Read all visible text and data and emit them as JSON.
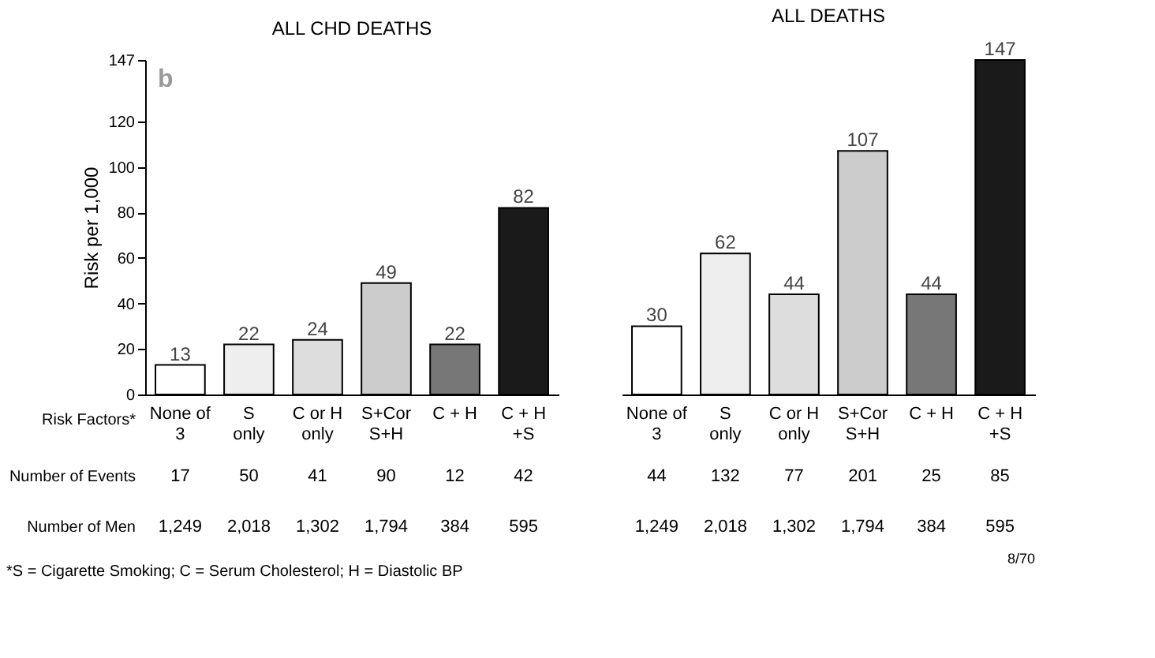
{
  "chart_data": [
    {
      "type": "bar",
      "title": "ALL CHD DEATHS",
      "ylabel": "Risk per 1,000",
      "categories": [
        "None of 3",
        "S only",
        "C or H only",
        "S+Cor S+H",
        "C + H",
        "C + H +S"
      ],
      "values": [
        13,
        22,
        24,
        49,
        22,
        82
      ],
      "colors": [
        "#ffffff",
        "#eeeeee",
        "#dddddd",
        "#cccccc",
        "#777777",
        "#1a1a1a"
      ],
      "ylim": [
        0,
        147
      ],
      "yticks": [
        0,
        20,
        40,
        60,
        80,
        100,
        120,
        147
      ],
      "data_labels": true,
      "grid": false,
      "annotations": [
        "17",
        "50",
        "41",
        "90",
        "12",
        "42",
        "1,249",
        "2,018",
        "1,302",
        "1,794",
        "384",
        "595",
        "b",
        "Risk Factors*",
        "Number of Events",
        "Number of Men",
        "*S = Cigarette Smoking; C = Serum Cholesterol; H = Diastolic BP"
      ]
    },
    {
      "type": "bar",
      "title": "ALL DEATHS",
      "categories": [
        "None of 3",
        "S only",
        "C or H only",
        "S+Cor S+H",
        "C + H",
        "C + H +S"
      ],
      "values": [
        30,
        62,
        44,
        107,
        44,
        147
      ],
      "colors": [
        "#ffffff",
        "#eeeeee",
        "#dddddd",
        "#cccccc",
        "#777777",
        "#1a1a1a"
      ],
      "ylim": [
        0,
        147
      ],
      "tick_labels": "x",
      "data_labels": true,
      "grid": false,
      "annotations": [
        "44",
        "132",
        "77",
        "201",
        "25",
        "85",
        "1,249",
        "2,018",
        "1,302",
        "1,794",
        "384",
        "595",
        "8/70"
      ]
    }
  ]
}
